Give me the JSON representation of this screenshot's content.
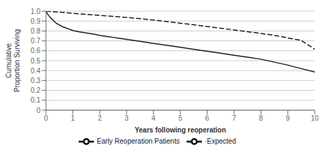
{
  "chart_data": {
    "type": "line",
    "xlabel": "Years following reoperation",
    "ylabel": "Cumulative\nProportion Surviving",
    "xlim": [
      0,
      10
    ],
    "ylim": [
      0,
      1
    ],
    "xticks": [
      0,
      1,
      2,
      3,
      4,
      5,
      6,
      7,
      8,
      9,
      10
    ],
    "yticks": [
      0,
      0.1,
      0.2,
      0.3,
      0.4,
      0.5,
      0.6,
      0.7,
      0.8,
      0.9,
      {
        "value": 1,
        "label": "1.0"
      }
    ],
    "grid": true,
    "legend": "bottom",
    "series": [
      {
        "name": "Early Reoperation Patients",
        "color": "#1a1a1a",
        "line_style": "solid",
        "x": [
          0.0,
          0.05,
          0.1,
          0.15,
          0.2,
          0.3,
          0.4,
          0.5,
          0.6,
          0.7,
          0.8,
          0.9,
          1.0,
          1.25,
          1.5,
          1.75,
          2.0,
          2.25,
          2.5,
          2.75,
          3.0,
          3.5,
          4.0,
          4.5,
          5.0,
          5.5,
          6.0,
          6.5,
          7.0,
          7.5,
          8.0,
          8.5,
          9.0,
          9.5,
          10.0
        ],
        "values": [
          1.0,
          0.975,
          0.955,
          0.94,
          0.925,
          0.9,
          0.875,
          0.86,
          0.845,
          0.835,
          0.825,
          0.815,
          0.805,
          0.79,
          0.78,
          0.77,
          0.755,
          0.745,
          0.735,
          0.725,
          0.715,
          0.695,
          0.675,
          0.655,
          0.635,
          0.615,
          0.595,
          0.575,
          0.555,
          0.535,
          0.515,
          0.485,
          0.455,
          0.42,
          0.385
        ]
      },
      {
        "name": "·Expected",
        "color": "#1a1a1a",
        "line_style": "dashed",
        "x": [
          0,
          0.5,
          1.0,
          1.5,
          2.0,
          2.5,
          3.0,
          3.5,
          4.0,
          4.5,
          5.0,
          5.5,
          6.0,
          6.5,
          7.0,
          7.5,
          8.0,
          8.5,
          9.0,
          9.5,
          10.0
        ],
        "values": [
          1.0,
          0.99,
          0.978,
          0.968,
          0.958,
          0.948,
          0.937,
          0.924,
          0.91,
          0.895,
          0.878,
          0.862,
          0.845,
          0.828,
          0.81,
          0.793,
          0.775,
          0.755,
          0.73,
          0.705,
          0.615
        ]
      }
    ]
  }
}
